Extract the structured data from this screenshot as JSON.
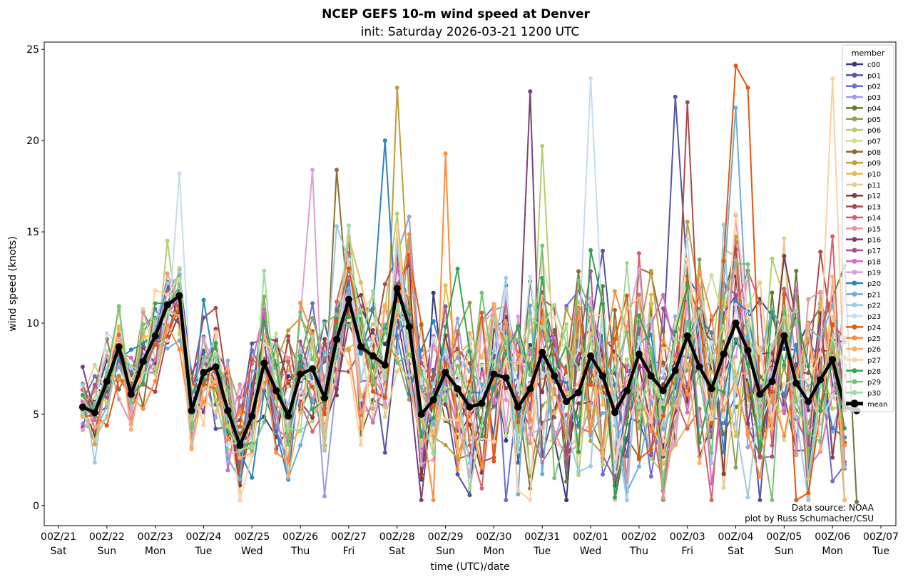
{
  "chart_data": {
    "type": "line",
    "title": "NCEP GEFS 10-m wind speed at Denver",
    "subtitle": "init: Saturday 2026-03-21 1200 UTC",
    "xlabel": "time (UTC)/date",
    "ylabel": "wind speed (knots)",
    "ylim": [
      -1.1,
      25.4
    ],
    "yticks": [
      "0",
      "5",
      "10",
      "15",
      "20",
      "25"
    ],
    "time_step_hours": 6,
    "start_time": "2026-03-21 12Z",
    "xticks": [
      {
        "label": "00Z/21",
        "day": "Sat"
      },
      {
        "label": "00Z/22",
        "day": "Sun"
      },
      {
        "label": "00Z/23",
        "day": "Mon"
      },
      {
        "label": "00Z/24",
        "day": "Tue"
      },
      {
        "label": "00Z/25",
        "day": "Wed"
      },
      {
        "label": "00Z/26",
        "day": "Thu"
      },
      {
        "label": "00Z/27",
        "day": "Fri"
      },
      {
        "label": "00Z/28",
        "day": "Sat"
      },
      {
        "label": "00Z/29",
        "day": "Sun"
      },
      {
        "label": "00Z/30",
        "day": "Mon"
      },
      {
        "label": "00Z/31",
        "day": "Tue"
      },
      {
        "label": "00Z/01",
        "day": "Wed"
      },
      {
        "label": "00Z/02",
        "day": "Thu"
      },
      {
        "label": "00Z/03",
        "day": "Fri"
      },
      {
        "label": "00Z/04",
        "day": "Sat"
      },
      {
        "label": "00Z/05",
        "day": "Sun"
      },
      {
        "label": "00Z/06",
        "day": "Mon"
      },
      {
        "label": "00Z/07",
        "day": "Tue"
      }
    ],
    "legend": {
      "title": "member",
      "placement": "right"
    },
    "members": [
      {
        "name": "c00",
        "color": "#393b79"
      },
      {
        "name": "p01",
        "color": "#5254a3"
      },
      {
        "name": "p02",
        "color": "#6b6ecf"
      },
      {
        "name": "p03",
        "color": "#9c9ede"
      },
      {
        "name": "p04",
        "color": "#637939"
      },
      {
        "name": "p05",
        "color": "#8ca252"
      },
      {
        "name": "p06",
        "color": "#b5cf6b"
      },
      {
        "name": "p07",
        "color": "#cedb9c"
      },
      {
        "name": "p08",
        "color": "#8c6d31"
      },
      {
        "name": "p09",
        "color": "#bd9e39"
      },
      {
        "name": "p10",
        "color": "#e7ba52"
      },
      {
        "name": "p11",
        "color": "#e7cb94"
      },
      {
        "name": "p12",
        "color": "#843c39"
      },
      {
        "name": "p13",
        "color": "#ad494a"
      },
      {
        "name": "p14",
        "color": "#d6616b"
      },
      {
        "name": "p15",
        "color": "#e7969c"
      },
      {
        "name": "p16",
        "color": "#7b4173"
      },
      {
        "name": "p17",
        "color": "#a55194"
      },
      {
        "name": "p18",
        "color": "#ce6dbd"
      },
      {
        "name": "p19",
        "color": "#de9ed6"
      },
      {
        "name": "p20",
        "color": "#3182bd"
      },
      {
        "name": "p21",
        "color": "#6baed6"
      },
      {
        "name": "p22",
        "color": "#9ecae1"
      },
      {
        "name": "p23",
        "color": "#c6dbef"
      },
      {
        "name": "p24",
        "color": "#e6550d"
      },
      {
        "name": "p25",
        "color": "#fd8d3c"
      },
      {
        "name": "p26",
        "color": "#fdae6b"
      },
      {
        "name": "p27",
        "color": "#fdd0a2"
      },
      {
        "name": "p28",
        "color": "#31a354"
      },
      {
        "name": "p29",
        "color": "#74c476"
      },
      {
        "name": "p30",
        "color": "#a1d99b"
      }
    ],
    "member_peaks": [
      {
        "member": "p23",
        "step": 8,
        "value": 18.2
      },
      {
        "member": "p19",
        "step": 19,
        "value": 18.4
      },
      {
        "member": "p08",
        "step": 21,
        "value": 18.4
      },
      {
        "member": "p09",
        "step": 26,
        "value": 22.9
      },
      {
        "member": "p20",
        "step": 25,
        "value": 20.0
      },
      {
        "member": "p25",
        "step": 30,
        "value": 19.3
      },
      {
        "member": "p16",
        "step": 37,
        "value": 22.7
      },
      {
        "member": "p06",
        "step": 38,
        "value": 19.7
      },
      {
        "member": "p23",
        "step": 42,
        "value": 23.4
      },
      {
        "member": "p01",
        "step": 49,
        "value": 22.4
      },
      {
        "member": "p13",
        "step": 50,
        "value": 22.1
      },
      {
        "member": "p24",
        "step": 54,
        "value": 24.1
      },
      {
        "member": "p21",
        "step": 54,
        "value": 21.8
      },
      {
        "member": "p24",
        "step": 55,
        "value": 22.9
      },
      {
        "member": "p27",
        "step": 62,
        "value": 23.4
      },
      {
        "member": "p04",
        "step": 64,
        "value": 0.2
      }
    ],
    "mean": {
      "name": "mean",
      "color": "#000000",
      "values": [
        5.4,
        5.1,
        6.8,
        8.7,
        6.1,
        7.9,
        9.3,
        11.0,
        11.5,
        5.2,
        7.3,
        7.6,
        5.2,
        3.3,
        4.9,
        7.8,
        6.3,
        4.9,
        7.2,
        7.5,
        5.9,
        9.1,
        11.3,
        8.7,
        8.2,
        7.7,
        11.9,
        9.8,
        5.0,
        5.8,
        7.3,
        6.4,
        5.4,
        5.6,
        7.2,
        7.0,
        5.4,
        6.4,
        8.4,
        7.1,
        5.7,
        6.2,
        8.2,
        7.1,
        5.1,
        6.3,
        8.3,
        7.1,
        6.3,
        7.4,
        9.3,
        7.6,
        6.4,
        8.3,
        10.0,
        8.5,
        6.1,
        6.8,
        9.3,
        6.7,
        5.7,
        6.9,
        8.0,
        5.4,
        5.2
      ]
    },
    "annotations": [
      "Data source: NOAA",
      "plot by Russ Schumacher/CSU"
    ]
  }
}
